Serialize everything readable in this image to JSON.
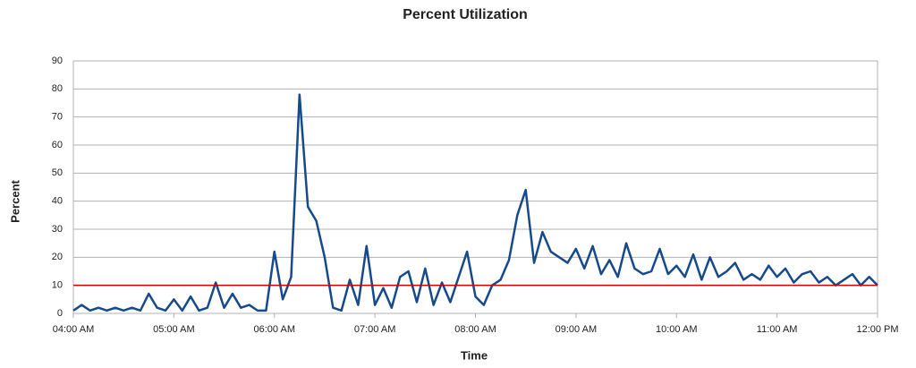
{
  "chart_data": {
    "type": "line",
    "title": "Percent Utilization",
    "x_label": "Time",
    "y_label": "Percent",
    "x": [
      "04:00 AM",
      "04:05 AM",
      "04:10 AM",
      "04:15 AM",
      "04:20 AM",
      "04:25 AM",
      "04:30 AM",
      "04:35 AM",
      "04:40 AM",
      "04:45 AM",
      "04:50 AM",
      "04:55 AM",
      "05:00 AM",
      "05:05 AM",
      "05:10 AM",
      "05:15 AM",
      "05:20 AM",
      "05:25 AM",
      "05:30 AM",
      "05:35 AM",
      "05:40 AM",
      "05:45 AM",
      "05:50 AM",
      "05:55 AM",
      "06:00 AM",
      "06:05 AM",
      "06:10 AM",
      "06:15 AM",
      "06:20 AM",
      "06:25 AM",
      "06:30 AM",
      "06:35 AM",
      "06:40 AM",
      "06:45 AM",
      "06:50 AM",
      "06:55 AM",
      "07:00 AM",
      "07:05 AM",
      "07:10 AM",
      "07:15 AM",
      "07:20 AM",
      "07:25 AM",
      "07:30 AM",
      "07:35 AM",
      "07:40 AM",
      "07:45 AM",
      "07:50 AM",
      "07:55 AM",
      "08:00 AM",
      "08:05 AM",
      "08:10 AM",
      "08:15 AM",
      "08:20 AM",
      "08:25 AM",
      "08:30 AM",
      "08:35 AM",
      "08:40 AM",
      "08:45 AM",
      "08:50 AM",
      "08:55 AM",
      "09:00 AM",
      "09:05 AM",
      "09:10 AM",
      "09:15 AM",
      "09:20 AM",
      "09:25 AM",
      "09:30 AM",
      "09:35 AM",
      "09:40 AM",
      "09:45 AM",
      "09:50 AM",
      "09:55 AM",
      "10:00 AM",
      "10:05 AM",
      "10:10 AM",
      "10:15 AM",
      "10:20 AM",
      "10:25 AM",
      "10:30 AM",
      "10:35 AM",
      "10:40 AM",
      "10:45 AM",
      "10:50 AM",
      "10:55 AM",
      "11:00 AM",
      "11:05 AM",
      "11:10 AM",
      "11:15 AM",
      "11:20 AM",
      "11:25 AM",
      "11:30 AM",
      "11:35 AM",
      "11:40 AM",
      "11:45 AM",
      "11:50 AM",
      "11:55 AM",
      "12:00 PM"
    ],
    "series": [
      {
        "name": "Percent",
        "color": "#174a8b",
        "values": [
          1,
          3,
          1,
          2,
          1,
          2,
          1,
          2,
          1,
          7,
          2,
          1,
          5,
          1,
          6,
          1,
          2,
          11,
          2,
          7,
          2,
          3,
          1,
          1,
          22,
          5,
          13,
          78,
          38,
          33,
          20,
          2,
          1,
          12,
          3,
          24,
          3,
          9,
          2,
          13,
          15,
          4,
          16,
          3,
          11,
          4,
          13,
          22,
          6,
          3,
          10,
          12,
          19,
          35,
          44,
          18,
          29,
          22,
          20,
          18,
          23,
          16,
          24,
          14,
          19,
          13,
          25,
          16,
          14,
          15,
          23,
          14,
          17,
          13,
          21,
          12,
          20,
          13,
          15,
          18,
          12,
          14,
          12,
          17,
          13,
          16,
          11,
          14,
          15,
          11,
          13,
          10,
          12,
          14,
          10,
          13,
          10
        ]
      }
    ],
    "threshold": {
      "value": 10,
      "color": "#cc0000"
    },
    "xlim": [
      "04:00 AM",
      "12:00 PM"
    ],
    "xticks": [
      "04:00 AM",
      "05:00 AM",
      "06:00 AM",
      "07:00 AM",
      "08:00 AM",
      "09:00 AM",
      "10:00 AM",
      "11:00 AM",
      "12:00 PM"
    ],
    "ylim": [
      0,
      90
    ],
    "yticks": [
      0,
      10,
      20,
      30,
      40,
      50,
      60,
      70,
      80,
      90
    ],
    "grid": true
  }
}
